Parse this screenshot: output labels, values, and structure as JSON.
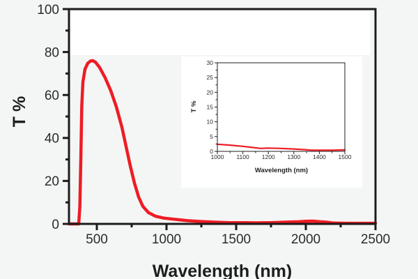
{
  "chart_data": [
    {
      "id": "main",
      "type": "line",
      "title": "",
      "xlabel": "Wavelength (nm)",
      "ylabel": "T %",
      "xlim": [
        300,
        2500
      ],
      "ylim": [
        0,
        100
      ],
      "xticks": [
        500,
        1000,
        1500,
        2000,
        2500
      ],
      "yticks": [
        0,
        20,
        40,
        60,
        80,
        100
      ],
      "grid": false,
      "legend": "none",
      "series": [
        {
          "name": "T %",
          "color": "#ee1c24",
          "x": [
            300,
            370,
            378,
            385,
            392,
            400,
            415,
            435,
            455,
            470,
            490,
            520,
            560,
            600,
            640,
            680,
            710,
            740,
            770,
            800,
            830,
            870,
            920,
            980,
            1050,
            1150,
            1250,
            1350,
            1450,
            1550,
            1650,
            1750,
            1850,
            1950,
            2000,
            2050,
            2100,
            2150,
            2200,
            2300,
            2400,
            2500
          ],
          "y": [
            0,
            0,
            8,
            30,
            55,
            66,
            72,
            74.8,
            75.8,
            76,
            75.3,
            72.8,
            68,
            62,
            54.5,
            45,
            36,
            27,
            19,
            12.5,
            8.2,
            5.3,
            3.6,
            2.7,
            2.2,
            1.5,
            1.1,
            0.8,
            0.6,
            0.6,
            0.5,
            0.6,
            0.8,
            1.0,
            1.2,
            1.3,
            1.0,
            0.8,
            0.4,
            0.3,
            0.3,
            0.3
          ]
        }
      ]
    },
    {
      "id": "inset",
      "type": "line",
      "title": "",
      "xlabel": "Wavelength (nm)",
      "ylabel": "T %",
      "xlim": [
        1000,
        1500
      ],
      "ylim": [
        0,
        30
      ],
      "xticks": [
        1000,
        1100,
        1200,
        1300,
        1400,
        1500
      ],
      "yticks": [
        0,
        5,
        10,
        15,
        20,
        25,
        30
      ],
      "grid": false,
      "legend": "none",
      "series": [
        {
          "name": "T %",
          "color": "#ee1c24",
          "x": [
            1000,
            1050,
            1100,
            1140,
            1170,
            1200,
            1250,
            1300,
            1340,
            1370,
            1400,
            1450,
            1500
          ],
          "y": [
            2.4,
            2.1,
            1.7,
            1.3,
            1.0,
            1.1,
            1.0,
            0.8,
            0.6,
            0.4,
            0.4,
            0.4,
            0.5
          ]
        }
      ]
    }
  ]
}
